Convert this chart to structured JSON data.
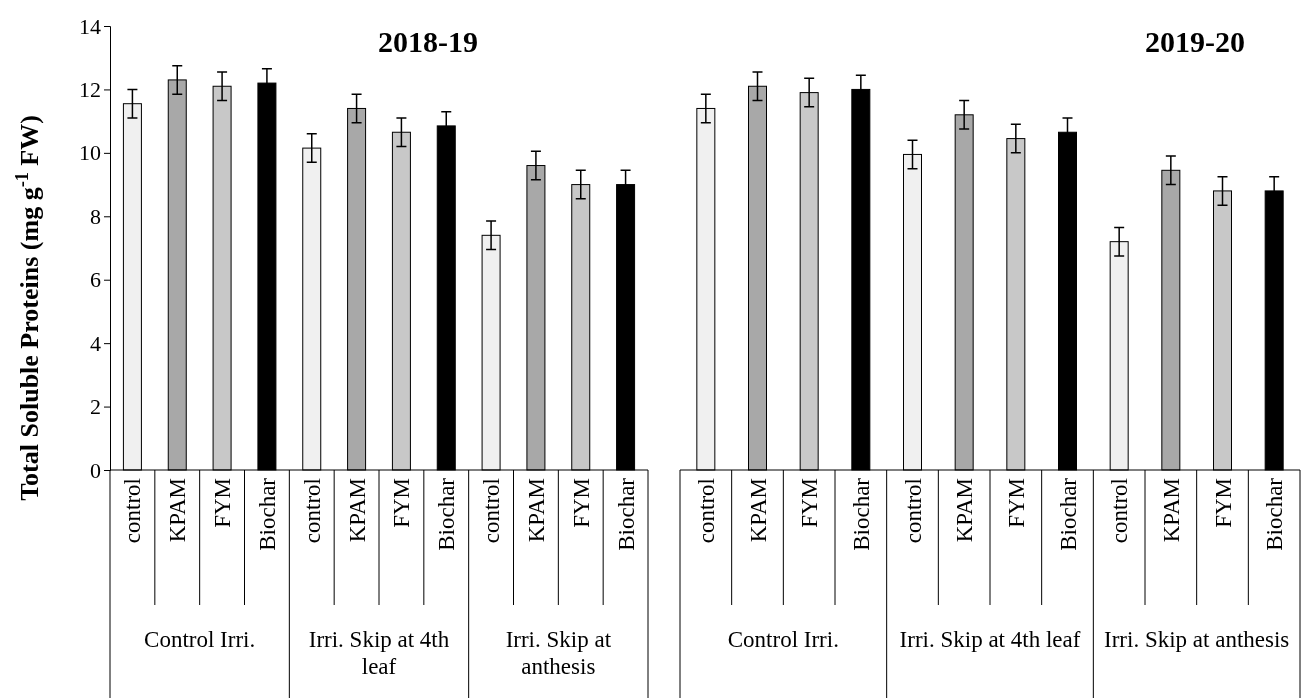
{
  "chart_data": [
    {
      "type": "bar",
      "title": "2018-19",
      "ylabel": "Total Soluble Proteins (mg g$^{-1}$ FW)",
      "categories": [
        "control",
        "KPAM",
        "FYM",
        "Biochar",
        "control",
        "KPAM",
        "FYM",
        "Biochar",
        "control",
        "KPAM",
        "FYM",
        "Biochar"
      ],
      "values": [
        11.55,
        12.3,
        12.1,
        12.2,
        10.15,
        11.4,
        10.65,
        10.85,
        7.4,
        9.6,
        9.0,
        9.0
      ],
      "errors": [
        0.45,
        0.45,
        0.45,
        0.45,
        0.45,
        0.45,
        0.45,
        0.45,
        0.45,
        0.45,
        0.45,
        0.45
      ],
      "colors": [
        "#f0f0f0",
        "#a8a8a8",
        "#c8c8c8",
        "#000000",
        "#f0f0f0",
        "#a8a8a8",
        "#c8c8c8",
        "#000000",
        "#f0f0f0",
        "#a8a8a8",
        "#c8c8c8",
        "#000000"
      ],
      "annotations": [
        "Control Irri.",
        "Irri. Skip at 4th leaf",
        "Irri. Skip at anthesis"
      ],
      "ylim": [
        0,
        14
      ],
      "yticks": [
        0,
        2,
        4,
        6,
        8,
        10,
        12,
        14
      ],
      "grid": false
    },
    {
      "type": "bar",
      "title": "2019-20",
      "categories": [
        "control",
        "KPAM",
        "FYM",
        "Biochar",
        "control",
        "KPAM",
        "FYM",
        "Biochar",
        "control",
        "KPAM",
        "FYM",
        "Biochar"
      ],
      "values": [
        11.4,
        12.1,
        11.9,
        12.0,
        9.95,
        11.2,
        10.45,
        10.65,
        7.2,
        9.45,
        8.8,
        8.8
      ],
      "errors": [
        0.45,
        0.45,
        0.45,
        0.45,
        0.45,
        0.45,
        0.45,
        0.45,
        0.45,
        0.45,
        0.45,
        0.45
      ],
      "colors": [
        "#f0f0f0",
        "#a8a8a8",
        "#c8c8c8",
        "#000000",
        "#f0f0f0",
        "#a8a8a8",
        "#c8c8c8",
        "#000000",
        "#f0f0f0",
        "#a8a8a8",
        "#c8c8c8",
        "#000000"
      ],
      "annotations": [
        "Control Irri.",
        "Irri. Skip at 4th leaf",
        "Irri. Skip at anthesis"
      ],
      "ylim": [
        0,
        14
      ],
      "yticks": [
        0,
        2,
        4,
        6,
        8,
        10,
        12,
        14
      ],
      "tick_labels": "x",
      "grid": false
    }
  ]
}
